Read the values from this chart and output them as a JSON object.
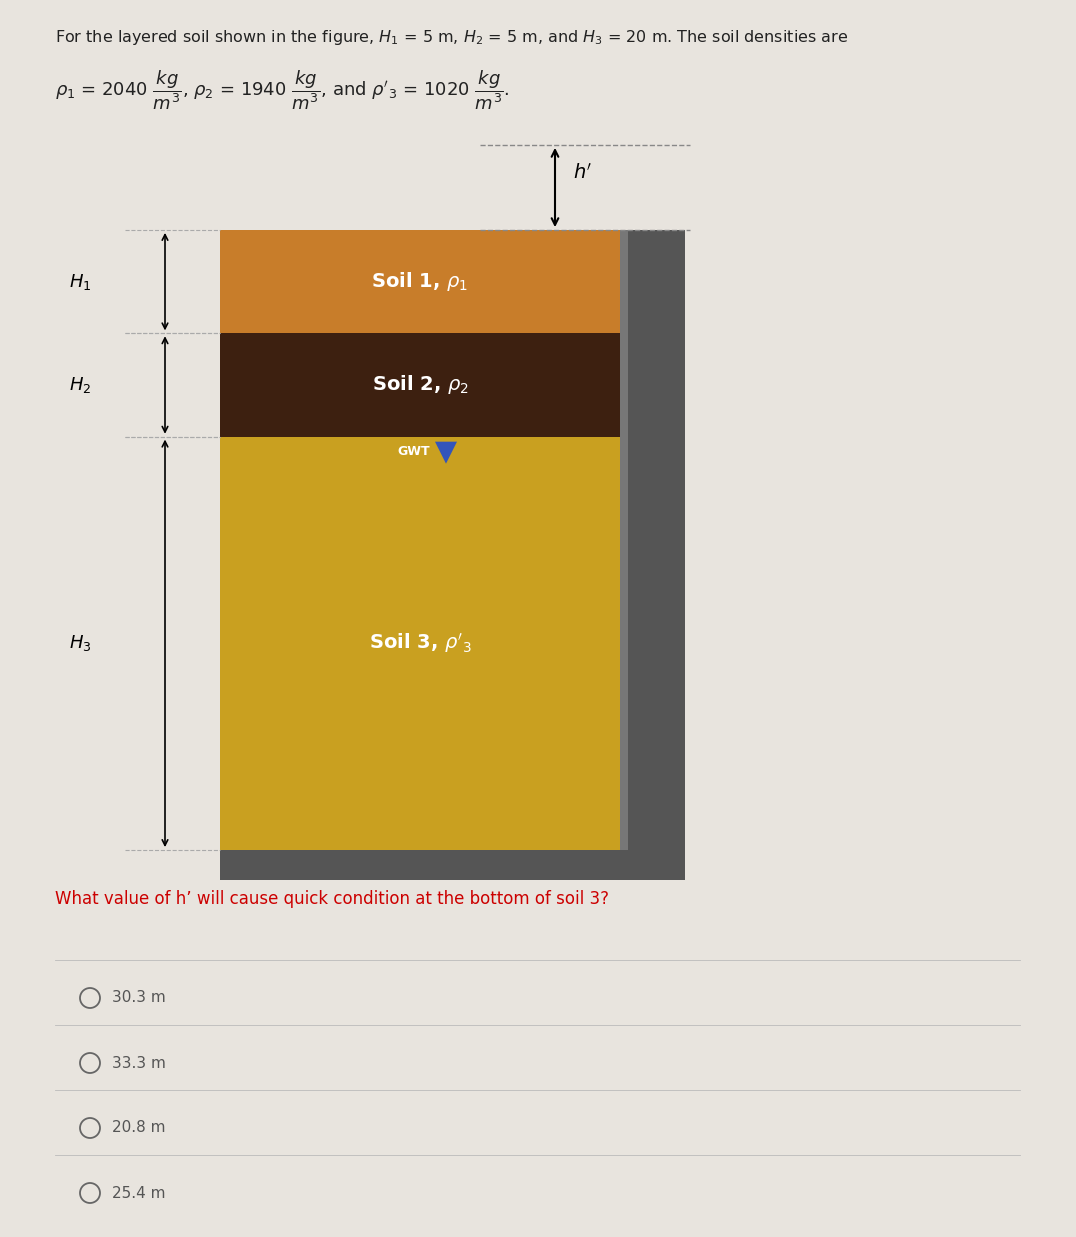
{
  "figure_bg": "#e8e4de",
  "soil1_color": "#c87d2a",
  "soil2_color": "#3d2010",
  "soil3_color": "#c9a020",
  "wall_color": "#555555",
  "wall_dark": "#333333",
  "question_color": "#cc0000",
  "options": [
    "30.3 m",
    "33.3 m",
    "20.8 m",
    "25.4 m"
  ],
  "option_color": "#555555",
  "h1_label": "$H_1$",
  "h2_label": "$H_2$",
  "h3_label": "$H_3$",
  "hprime_label": "$h'$",
  "soil1_label": "Soil 1, $\\rho_1$",
  "soil2_label": "Soil 2, $\\rho_2$",
  "soil3_label": "Soil 3, $\\rho'_3$",
  "gwt_label": "GWT",
  "gwt_color": "#3355bb"
}
